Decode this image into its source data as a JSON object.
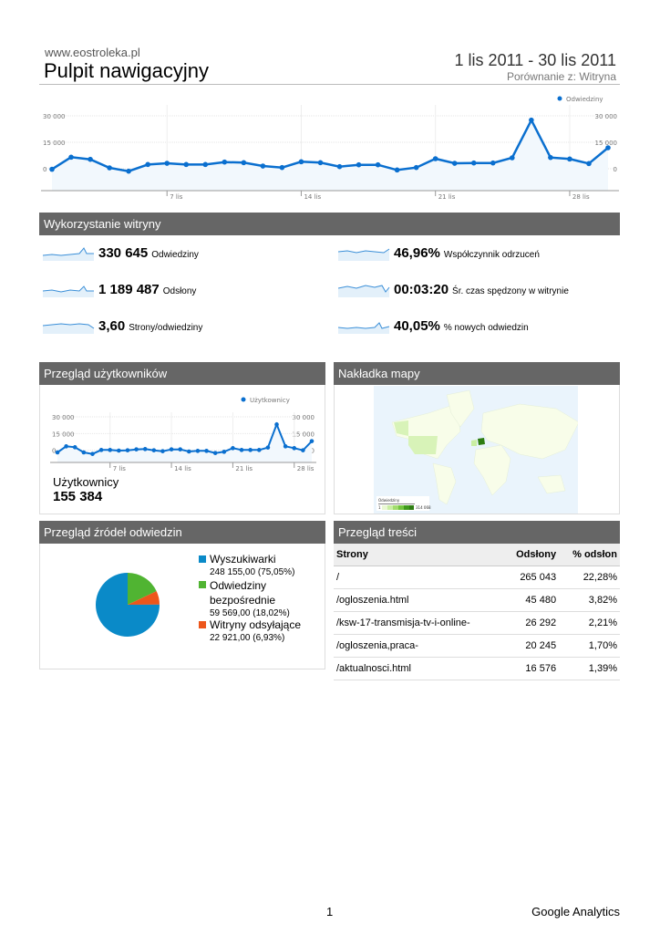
{
  "header": {
    "site": "www.eostroleka.pl",
    "title": "Pulpit nawigacyjny",
    "date_range": "1 lis 2011 - 30 lis 2011",
    "comparison": "Porównanie z: Witryna"
  },
  "colors": {
    "line": "#0a6fcf",
    "fill": "#f2f8fd",
    "search": "#0a8ac8",
    "direct": "#50b432",
    "referral": "#ed561b",
    "bar": "#666666"
  },
  "chart_data": [
    {
      "type": "line",
      "title": "",
      "legend": "Odwiedziny",
      "legend_position": "top-right",
      "y_ticks": [
        "30 000",
        "15 000",
        "0"
      ],
      "y_tick_values": [
        30000,
        15000,
        0
      ],
      "x_ticks": [
        "7 lis",
        "14 lis",
        "21 lis",
        "28 lis"
      ],
      "x_tick_days": [
        7,
        14,
        21,
        28
      ],
      "ylim": [
        -12400,
        36200
      ],
      "x": [
        1,
        2,
        3,
        4,
        5,
        6,
        7,
        8,
        9,
        10,
        11,
        12,
        13,
        14,
        15,
        16,
        17,
        18,
        19,
        20,
        21,
        22,
        23,
        24,
        25,
        26,
        27,
        28,
        29,
        30
      ],
      "values": [
        -300,
        6550,
        5340,
        520,
        -1380,
        2410,
        3100,
        2410,
        2410,
        3790,
        3450,
        1550,
        690,
        3970,
        3450,
        1210,
        2240,
        2240,
        -690,
        690,
        5690,
        3100,
        3280,
        3280,
        6210,
        27580,
        6380,
        5520,
        2930,
        11900
      ]
    },
    {
      "type": "line",
      "title": "",
      "legend": "Użytkownicy",
      "legend_position": "top-right",
      "y_ticks": [
        "30 000",
        "15 000",
        "0"
      ],
      "y_tick_values": [
        30000,
        15000,
        0
      ],
      "x_ticks": [
        "7 lis",
        "14 lis",
        "21 lis",
        "28 lis"
      ],
      "x_tick_days": [
        7,
        14,
        21,
        28
      ],
      "ylim": [
        -10900,
        34100
      ],
      "x": [
        1,
        2,
        3,
        4,
        5,
        6,
        7,
        8,
        9,
        10,
        11,
        12,
        13,
        14,
        15,
        16,
        17,
        18,
        19,
        20,
        21,
        22,
        23,
        24,
        25,
        26,
        27,
        28,
        29,
        30
      ],
      "values": [
        -1900,
        3550,
        2730,
        -1900,
        -3270,
        270,
        270,
        -270,
        0,
        820,
        1090,
        0,
        -820,
        820,
        820,
        -1090,
        -550,
        -550,
        -2450,
        -1360,
        1910,
        270,
        270,
        270,
        2450,
        23180,
        3550,
        1910,
        0,
        8180
      ]
    },
    {
      "type": "pie",
      "title": "Przegląd źródeł odwiedzin",
      "slices": [
        {
          "label": "Odwiedziny bezpośrednie",
          "value": 59569.0,
          "text": "59 569,00 (18,02%)",
          "percent": 18.02,
          "color": "#50b432"
        },
        {
          "label": "Witryny odsyłające",
          "value": 22921.0,
          "text": "22 921,00 (6,93%)",
          "percent": 6.93,
          "color": "#ed561b"
        },
        {
          "label": "Wyszukiwarki",
          "value": 248155.0,
          "text": "248 155,00 (75,05%)",
          "percent": 75.05,
          "color": "#0a8ac8"
        }
      ]
    }
  ],
  "usage": {
    "title": "Wykorzystanie witryny",
    "metrics": [
      {
        "value": "330 645",
        "label": "Odwiedziny"
      },
      {
        "value": "46,96%",
        "label": "Współczynnik odrzuceń"
      },
      {
        "value": "1 189 487",
        "label": "Odsłony"
      },
      {
        "value": "00:03:20",
        "label": "Śr. czas spędzony w witrynie"
      },
      {
        "value": "3,60",
        "label": "Strony/odwiedziny"
      },
      {
        "value": "40,05%",
        "label": "% nowych odwiedzin"
      }
    ]
  },
  "users": {
    "title": "Przegląd użytkowników",
    "label": "Użytkownicy",
    "value": "155 384"
  },
  "map": {
    "title": "Nakładka mapy",
    "legend_title": "Odwiedziny",
    "legend_min": "1",
    "legend_max": "314 068"
  },
  "sources": {
    "title": "Przegląd źródeł odwiedzin",
    "legend": [
      {
        "name": "Wyszukiwarki",
        "detail": "248 155,00 (75,05%)"
      },
      {
        "name": "Odwiedziny bezpośrednie",
        "detail": "59 569,00 (18,02%)"
      },
      {
        "name": "Witryny odsyłające",
        "detail": "22 921,00 (6,93%)"
      }
    ]
  },
  "content": {
    "title": "Przegląd treści",
    "columns": [
      "Strony",
      "Odsłony",
      "% odsłon"
    ],
    "rows": [
      [
        "/",
        "265 043",
        "22,28%"
      ],
      [
        "/ogloszenia.html",
        "45 480",
        "3,82%"
      ],
      [
        "/ksw-17-transmisja-tv-i-online-",
        "26 292",
        "2,21%"
      ],
      [
        "/ogloszenia,praca-",
        "20 245",
        "1,70%"
      ],
      [
        "/aktualnosci.html",
        "16 576",
        "1,39%"
      ]
    ]
  },
  "footer": {
    "page": "1",
    "brand": "Google Analytics"
  }
}
